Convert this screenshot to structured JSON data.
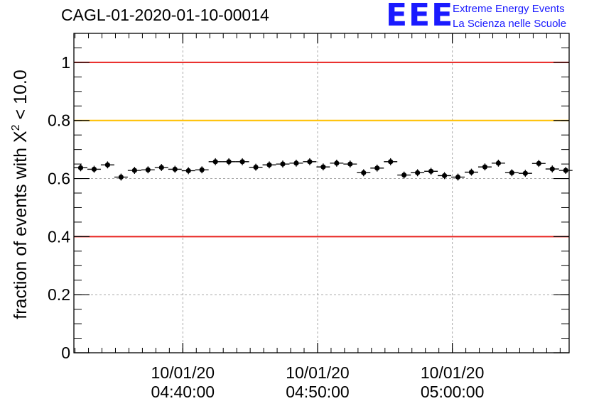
{
  "header": {
    "title": "CAGL-01-2020-01-10-00014",
    "logo_text": "EEE",
    "logo_line1": "Extreme Energy Events",
    "logo_line2": "La Scienza nelle Scuole"
  },
  "colors": {
    "red_line": "#e8231f",
    "yellow_line": "#ffc000",
    "marker": "#000000",
    "logo": "#1a1aff"
  },
  "chart_data": {
    "type": "scatter",
    "title": "CAGL-01-2020-01-10-00014",
    "ylabel": "fraction of events with X² < 10.0",
    "xlabel": "",
    "ylim": [
      0,
      1.1
    ],
    "xlim": [
      "2020-01-10T04:31:55",
      "2020-01-10T05:08:40"
    ],
    "x_ticks": [
      {
        "x": "2020-01-10T04:40:00",
        "label_date": "10/01/20",
        "label_time": "04:40:00"
      },
      {
        "x": "2020-01-10T04:50:00",
        "label_date": "10/01/20",
        "label_time": "04:50:00"
      },
      {
        "x": "2020-01-10T05:00:00",
        "label_date": "10/01/20",
        "label_time": "05:00:00"
      }
    ],
    "y_ticks": [
      {
        "y": 0,
        "label": "0"
      },
      {
        "y": 0.2,
        "label": "0.2"
      },
      {
        "y": 0.4,
        "label": "0.4"
      },
      {
        "y": 0.6,
        "label": "0.6"
      },
      {
        "y": 0.8,
        "label": "0.8"
      },
      {
        "y": 1.0,
        "label": "1"
      }
    ],
    "grid": true,
    "reference_lines": [
      {
        "y": 1.0,
        "color": "red"
      },
      {
        "y": 0.8,
        "color": "yellow"
      },
      {
        "y": 0.4,
        "color": "red"
      }
    ],
    "series": [
      {
        "x": [
          "2020-01-10T04:32:25",
          "2020-01-10T04:33:25",
          "2020-01-10T04:34:25",
          "2020-01-10T04:35:25",
          "2020-01-10T04:36:25",
          "2020-01-10T04:37:25",
          "2020-01-10T04:38:25",
          "2020-01-10T04:39:25",
          "2020-01-10T04:40:25",
          "2020-01-10T04:41:25",
          "2020-01-10T04:42:25",
          "2020-01-10T04:43:25",
          "2020-01-10T04:44:25",
          "2020-01-10T04:45:25",
          "2020-01-10T04:46:25",
          "2020-01-10T04:47:25",
          "2020-01-10T04:48:25",
          "2020-01-10T04:49:25",
          "2020-01-10T04:50:25",
          "2020-01-10T04:51:25",
          "2020-01-10T04:52:25",
          "2020-01-10T04:53:25",
          "2020-01-10T04:54:25",
          "2020-01-10T04:55:25",
          "2020-01-10T04:56:25",
          "2020-01-10T04:57:25",
          "2020-01-10T04:58:25",
          "2020-01-10T04:59:25",
          "2020-01-10T05:00:25",
          "2020-01-10T05:01:25",
          "2020-01-10T05:02:25",
          "2020-01-10T05:03:25",
          "2020-01-10T05:04:25",
          "2020-01-10T05:05:25",
          "2020-01-10T05:06:25",
          "2020-01-10T05:07:25",
          "2020-01-10T05:08:25"
        ],
        "values": [
          0.637,
          0.632,
          0.647,
          0.605,
          0.628,
          0.63,
          0.638,
          0.632,
          0.627,
          0.63,
          0.658,
          0.658,
          0.658,
          0.639,
          0.647,
          0.65,
          0.653,
          0.658,
          0.64,
          0.653,
          0.65,
          0.62,
          0.636,
          0.658,
          0.612,
          0.62,
          0.625,
          0.61,
          0.605,
          0.622,
          0.64,
          0.653,
          0.62,
          0.618,
          0.652,
          0.633,
          0.628
        ],
        "yerr": 0.012
      }
    ]
  }
}
